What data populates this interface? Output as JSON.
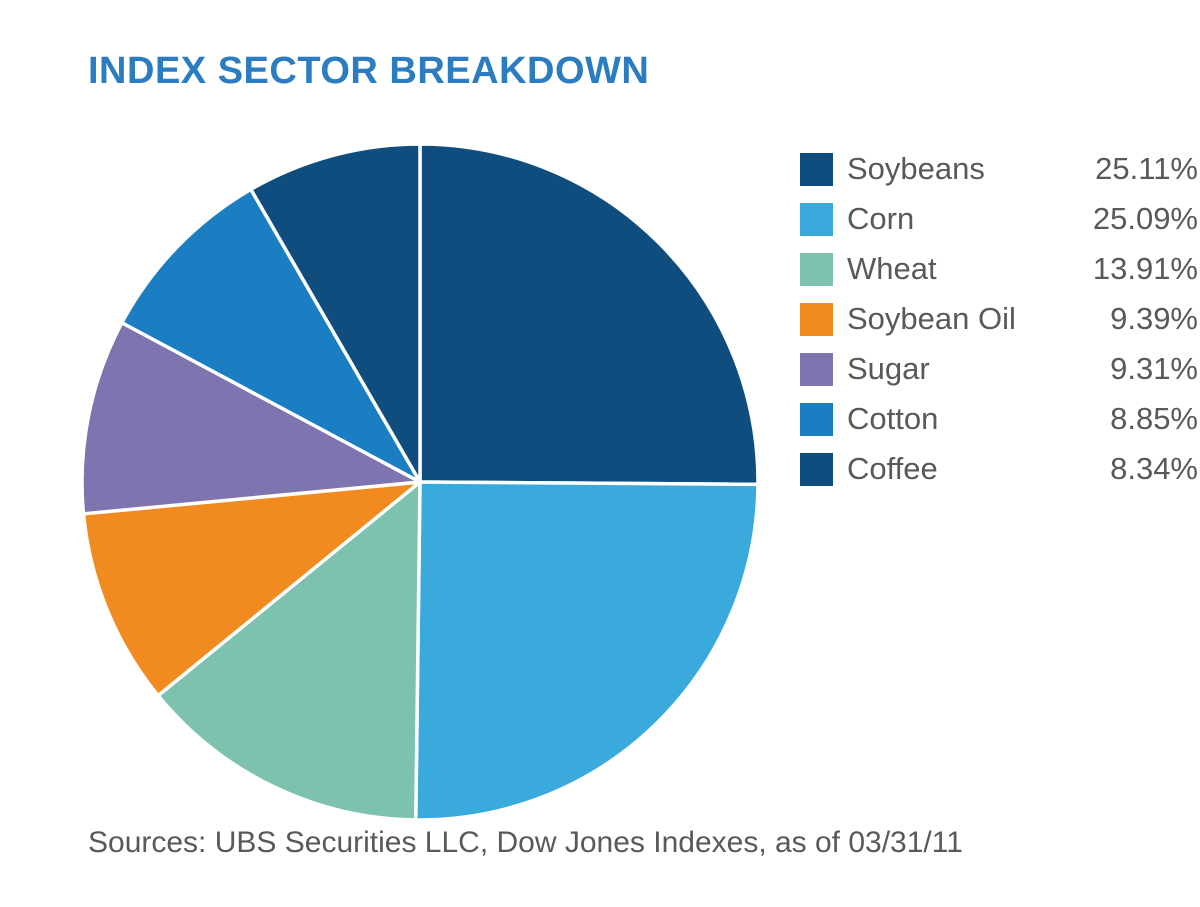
{
  "page": {
    "title": "INDEX SECTOR BREAKDOWN",
    "source_note": "Sources: UBS Securities LLC, Dow Jones Indexes, as of 03/31/11"
  },
  "colors": {
    "title": "#2b7cc0",
    "text": "#58595b",
    "background": "#ffffff",
    "slice_stroke": "#ffffff"
  },
  "chart_data": {
    "type": "pie",
    "title": "INDEX SECTOR BREAKDOWN",
    "start_angle_deg": -90,
    "direction": "clockwise",
    "legend_position": "right",
    "total": 100.0,
    "slices": [
      {
        "label": "Soybeans",
        "value": 25.11,
        "display": "25.11%",
        "color": "#0e4d7d"
      },
      {
        "label": "Corn",
        "value": 25.09,
        "display": "25.09%",
        "color": "#3aa9dc"
      },
      {
        "label": "Wheat",
        "value": 13.91,
        "display": "13.91%",
        "color": "#7cc2ae"
      },
      {
        "label": "Soybean Oil",
        "value": 9.39,
        "display": "9.39%",
        "color": "#f18b1f"
      },
      {
        "label": "Sugar",
        "value": 9.31,
        "display": "9.31%",
        "color": "#7d74b0"
      },
      {
        "label": "Cotton",
        "value": 8.85,
        "display": "8.85%",
        "color": "#1b7ec2"
      },
      {
        "label": "Coffee",
        "value": 8.34,
        "display": "8.34%",
        "color": "#0e4d7d"
      }
    ]
  }
}
